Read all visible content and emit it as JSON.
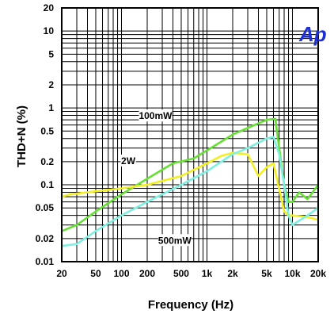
{
  "chart_data": {
    "type": "line",
    "xlabel": "Frequency (Hz)",
    "ylabel": "THD+N (%)",
    "x_scale": "log",
    "y_scale": "log",
    "xlim": [
      20,
      20000
    ],
    "ylim": [
      0.01,
      20
    ],
    "grid": true,
    "x_ticks": [
      {
        "value": 20,
        "label": "20"
      },
      {
        "value": 50,
        "label": "50"
      },
      {
        "value": 100,
        "label": "100"
      },
      {
        "value": 200,
        "label": "200"
      },
      {
        "value": 500,
        "label": "500"
      },
      {
        "value": 1000,
        "label": "1k"
      },
      {
        "value": 2000,
        "label": "2k"
      },
      {
        "value": 5000,
        "label": "5k"
      },
      {
        "value": 10000,
        "label": "10k"
      },
      {
        "value": 20000,
        "label": "20k"
      }
    ],
    "y_ticks": [
      {
        "value": 20,
        "label": "20"
      },
      {
        "value": 10,
        "label": "10"
      },
      {
        "value": 5,
        "label": "5"
      },
      {
        "value": 2,
        "label": "2"
      },
      {
        "value": 1,
        "label": "1"
      },
      {
        "value": 0.5,
        "label": "0.5"
      },
      {
        "value": 0.2,
        "label": "0.2"
      },
      {
        "value": 0.1,
        "label": "0.1"
      },
      {
        "value": 0.05,
        "label": "0.05"
      },
      {
        "value": 0.02,
        "label": "0.02"
      },
      {
        "value": 0.01,
        "label": "0.01"
      }
    ],
    "series": [
      {
        "name": "100mW",
        "color": "#66e033",
        "label_at": [
          250,
          0.75
        ],
        "x": [
          20,
          30,
          50,
          100,
          200,
          400,
          700,
          1000,
          2000,
          3000,
          5000,
          6300,
          8000,
          9000,
          10000,
          12000,
          15000,
          20000
        ],
        "y": [
          0.025,
          0.03,
          0.045,
          0.075,
          0.12,
          0.19,
          0.22,
          0.28,
          0.45,
          0.55,
          0.7,
          0.72,
          0.1,
          0.06,
          0.06,
          0.08,
          0.065,
          0.1
        ]
      },
      {
        "name": "2W",
        "color": "#f2f022",
        "label_at": [
          120,
          0.195
        ],
        "x": [
          20,
          25,
          40,
          100,
          200,
          500,
          1000,
          1500,
          2000,
          3000,
          4000,
          5000,
          6000,
          8000,
          9000,
          10000,
          15000,
          20000
        ],
        "y": [
          0.07,
          0.075,
          0.08,
          0.09,
          0.1,
          0.13,
          0.19,
          0.24,
          0.26,
          0.25,
          0.13,
          0.17,
          0.19,
          0.045,
          0.04,
          0.04,
          0.038,
          0.035
        ]
      },
      {
        "name": "500mW",
        "color": "#7ff0e0",
        "label_at": [
          420,
          0.018
        ],
        "x": [
          20,
          30,
          50,
          100,
          200,
          500,
          1000,
          2000,
          3000,
          5000,
          6000,
          7000,
          8000,
          9000,
          10000,
          15000,
          20000
        ],
        "y": [
          0.016,
          0.017,
          0.025,
          0.04,
          0.06,
          0.1,
          0.15,
          0.25,
          0.3,
          0.4,
          0.42,
          0.25,
          0.1,
          0.04,
          0.03,
          0.04,
          0.05
        ]
      }
    ]
  }
}
